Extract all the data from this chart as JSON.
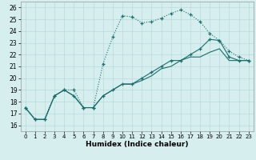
{
  "xlabel": "Humidex (Indice chaleur)",
  "background_color": "#d6eeee",
  "grid_color": "#b8dada",
  "line_color": "#1a6e6e",
  "xlim": [
    -0.5,
    23.5
  ],
  "ylim": [
    15.5,
    26.5
  ],
  "xticks": [
    0,
    1,
    2,
    3,
    4,
    5,
    6,
    7,
    8,
    9,
    10,
    11,
    12,
    13,
    14,
    15,
    16,
    17,
    18,
    19,
    20,
    21,
    22,
    23
  ],
  "yticks": [
    16,
    17,
    18,
    19,
    20,
    21,
    22,
    23,
    24,
    25,
    26
  ],
  "series1_x": [
    0,
    1,
    2,
    3,
    4,
    5,
    6,
    7,
    8,
    9,
    10,
    11,
    12,
    13,
    14,
    15,
    16,
    17,
    18,
    19,
    20,
    21,
    22,
    23
  ],
  "series1_y": [
    17.5,
    16.5,
    16.5,
    18.5,
    19.0,
    19.0,
    17.5,
    17.5,
    21.2,
    23.5,
    25.3,
    25.2,
    24.7,
    24.8,
    25.1,
    25.5,
    25.8,
    25.4,
    24.8,
    23.8,
    23.2,
    22.3,
    21.8,
    21.5
  ],
  "series2_x": [
    0,
    1,
    2,
    3,
    4,
    5,
    6,
    7,
    8,
    9,
    10,
    11,
    12,
    13,
    14,
    15,
    16,
    17,
    18,
    19,
    20,
    21,
    22,
    23
  ],
  "series2_y": [
    17.5,
    16.5,
    16.5,
    18.5,
    19.0,
    18.5,
    17.5,
    17.5,
    18.5,
    19.0,
    19.5,
    19.5,
    20.0,
    20.5,
    21.0,
    21.5,
    21.5,
    22.0,
    22.5,
    23.3,
    23.2,
    21.8,
    21.5,
    21.5
  ],
  "series3_x": [
    0,
    1,
    2,
    3,
    4,
    5,
    6,
    7,
    8,
    9,
    10,
    11,
    12,
    13,
    14,
    15,
    16,
    17,
    18,
    19,
    20,
    21,
    22,
    23
  ],
  "series3_y": [
    17.5,
    16.5,
    16.5,
    18.5,
    19.0,
    18.5,
    17.5,
    17.5,
    18.5,
    19.0,
    19.5,
    19.5,
    19.8,
    20.2,
    20.8,
    21.0,
    21.5,
    21.8,
    21.8,
    22.2,
    22.5,
    21.5,
    21.5,
    21.5
  ]
}
